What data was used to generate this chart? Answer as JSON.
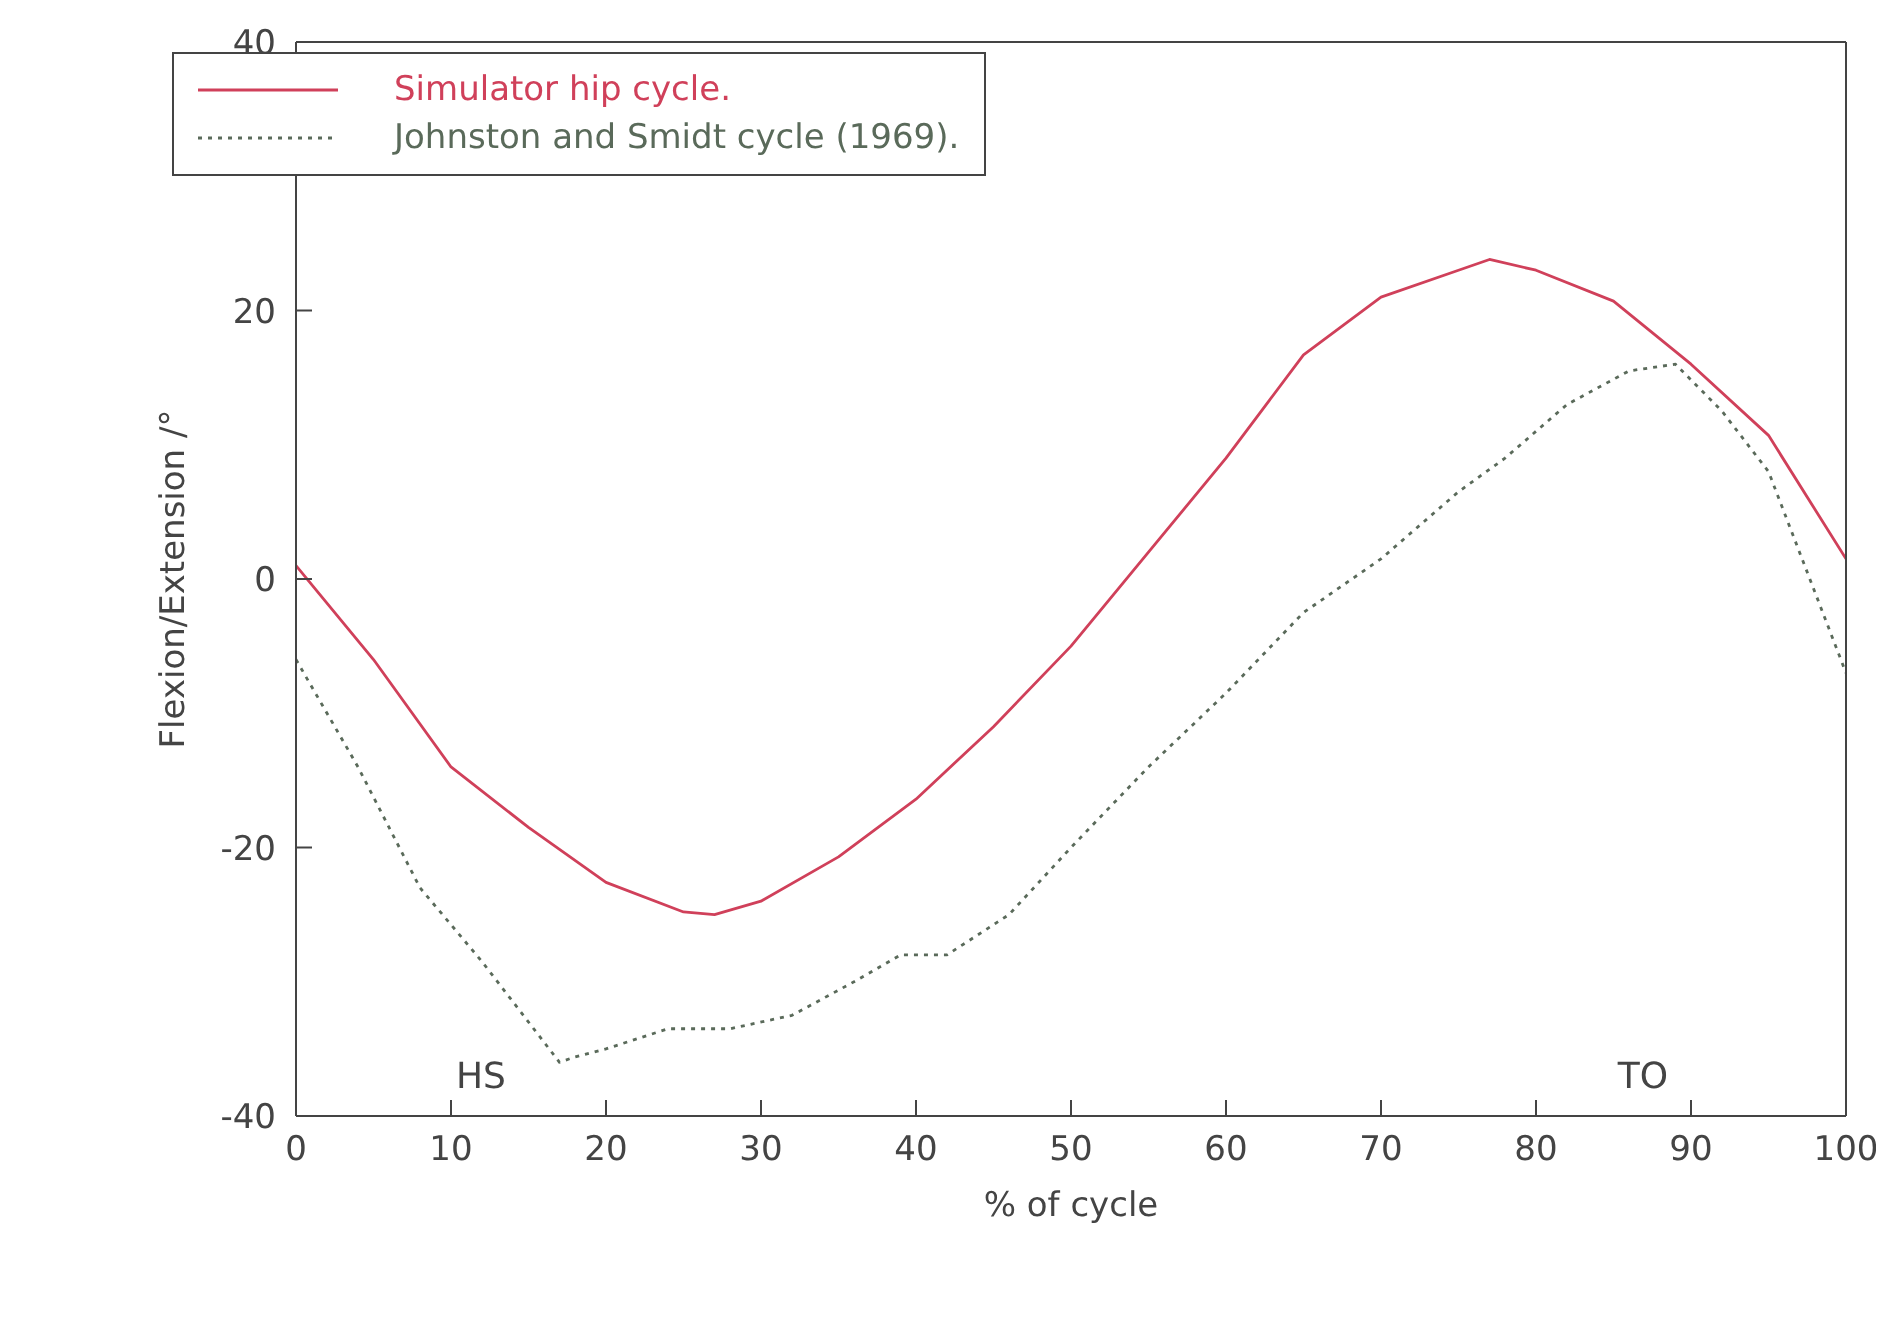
{
  "chart_data": {
    "type": "line",
    "xlabel": "% of cycle",
    "ylabel": "Flexion/Extension /°",
    "xlim": [
      0,
      100
    ],
    "ylim": [
      -40,
      40
    ],
    "xticks": [
      0,
      10,
      20,
      30,
      40,
      50,
      60,
      70,
      80,
      90,
      100
    ],
    "yticks": [
      -40,
      -20,
      0,
      20,
      40
    ],
    "legend": "top left",
    "grid": false,
    "marker": "none",
    "annotations": [
      "HS",
      "TO"
    ],
    "series": [
      {
        "name": "Simulator hip cycle.",
        "color": "#d0405a",
        "line_style": "solid",
        "x": [
          0,
          5,
          10,
          15,
          20,
          25,
          27,
          30,
          35,
          40,
          45,
          50,
          55,
          60,
          65,
          70,
          75,
          77,
          80,
          85,
          90,
          95,
          100
        ],
        "values": [
          1,
          -6,
          -14,
          -18.5,
          -22.6,
          -24.8,
          -25,
          -24,
          -20.7,
          -16.4,
          -11,
          -5,
          2,
          9,
          16.7,
          21,
          23,
          23.8,
          23,
          20.7,
          16,
          10.7,
          1.5
        ]
      },
      {
        "name": "Johnston and Smidt cycle (1969).",
        "color": "#5a6a5a",
        "line_style": "dotted",
        "x": [
          0,
          4,
          8,
          12,
          17,
          18,
          20,
          24,
          28,
          32,
          36,
          39,
          42,
          46,
          50,
          55,
          60,
          65,
          70,
          75,
          78,
          82,
          86,
          89,
          92,
          95,
          97,
          100
        ],
        "values": [
          -6,
          -14,
          -23,
          -28.5,
          -36,
          -35.6,
          -35,
          -33.5,
          -33.5,
          -32.5,
          -30,
          -28,
          -28,
          -25,
          -20,
          -14,
          -8.5,
          -2.5,
          1.5,
          6.5,
          9,
          13,
          15.5,
          16,
          12.5,
          8,
          2,
          -7
        ]
      }
    ]
  }
}
